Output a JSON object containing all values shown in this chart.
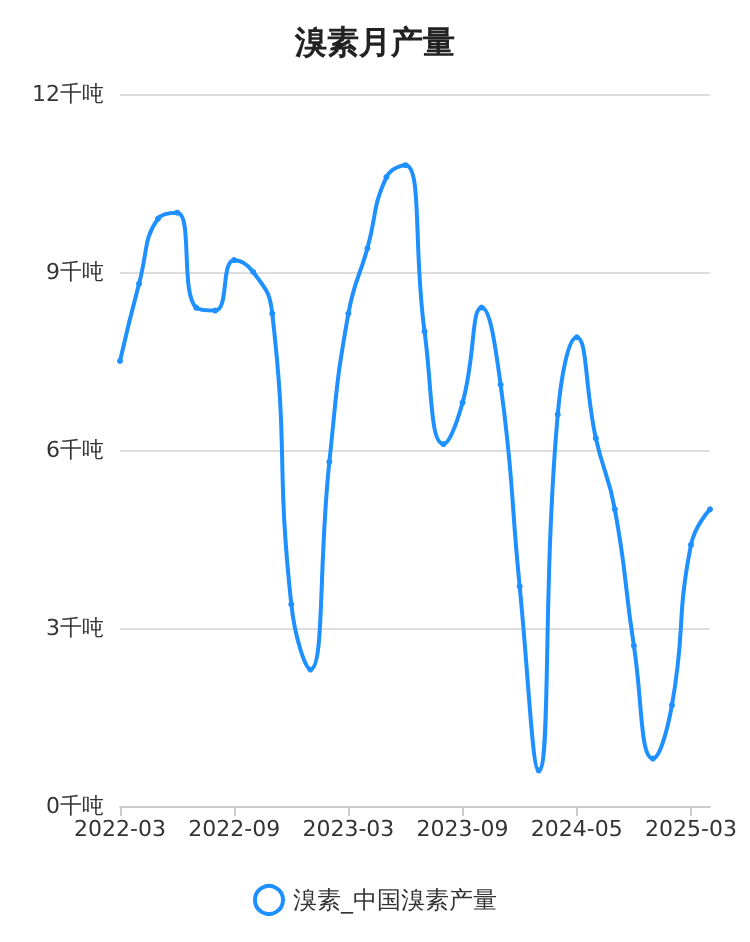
{
  "chart_data": {
    "type": "line",
    "title": "溴素月产量",
    "categories": [
      "2022-03",
      null,
      null,
      null,
      null,
      null,
      "2022-09",
      null,
      null,
      null,
      null,
      null,
      "2023-03",
      null,
      null,
      null,
      null,
      null,
      "2023-09",
      null,
      null,
      null,
      null,
      null,
      "2024-05",
      null,
      null,
      null,
      null,
      null,
      "2025-03",
      null
    ],
    "series": [
      {
        "name": "溴素_中国溴素产量",
        "color": "#1e90ff",
        "values": [
          7.5,
          8.8,
          9.9,
          10.0,
          8.4,
          8.35,
          9.2,
          9.0,
          8.3,
          3.4,
          2.3,
          5.8,
          8.3,
          9.4,
          10.6,
          10.8,
          8.0,
          6.1,
          6.8,
          8.4,
          7.1,
          3.7,
          0.6,
          6.6,
          7.9,
          6.2,
          5.0,
          2.7,
          0.8,
          1.7,
          4.4,
          5.0
        ]
      }
    ],
    "ylim": [
      0,
      12
    ],
    "yticks": [
      {
        "value": 0,
        "label": "0千吨"
      },
      {
        "value": 3,
        "label": "3千吨"
      },
      {
        "value": 6,
        "label": "6千吨"
      },
      {
        "value": 9,
        "label": "9千吨"
      },
      {
        "value": 12,
        "label": "12千吨"
      }
    ],
    "grid": "y",
    "legend": "bottom",
    "marker": "circle",
    "line_style": "solid"
  }
}
